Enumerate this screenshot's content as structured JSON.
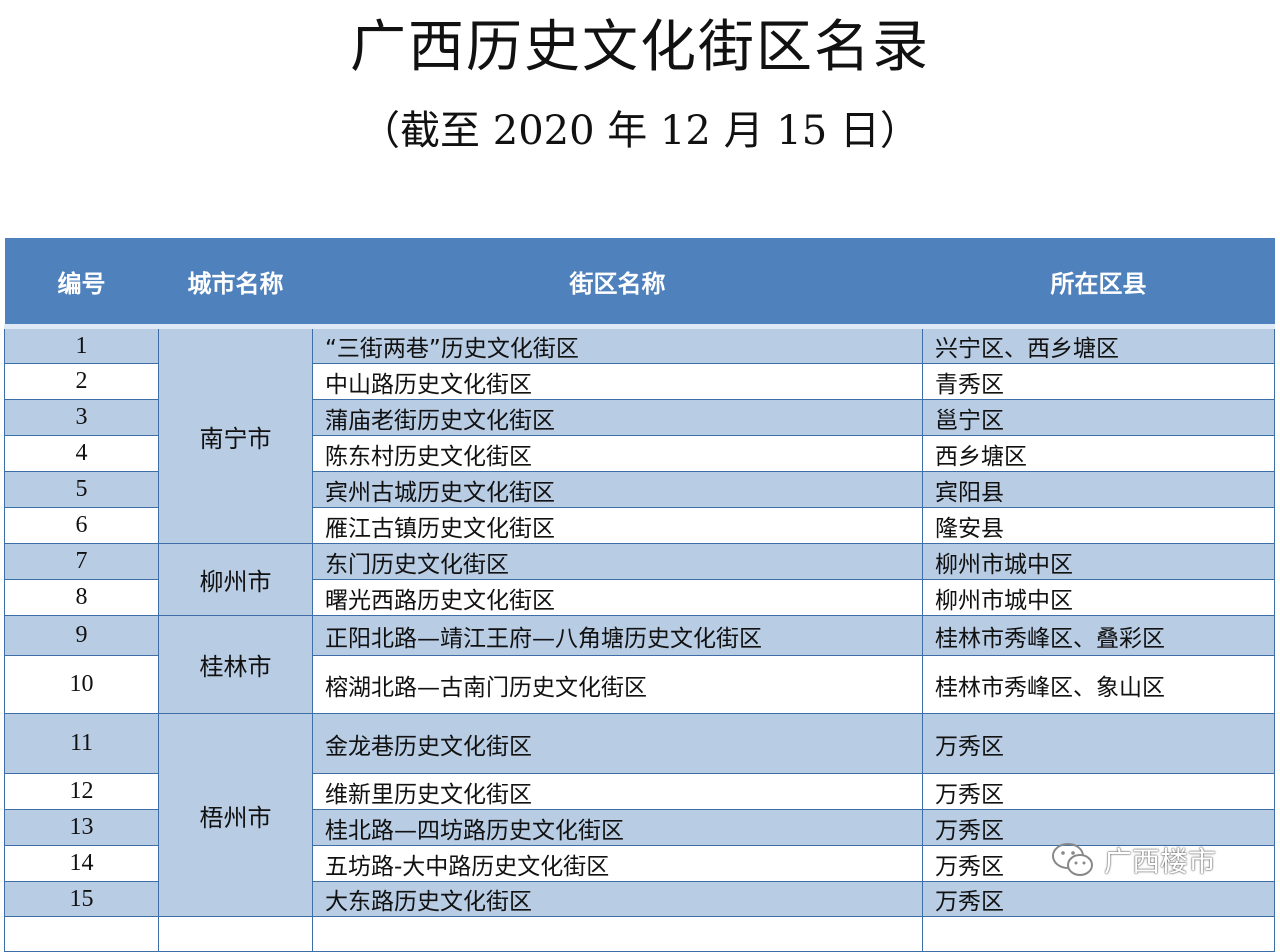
{
  "title": "广西历史文化街区名录",
  "subtitle": "（截至 2020 年 12 月 15 日）",
  "table": {
    "headers": [
      "编号",
      "城市名称",
      "街区名称",
      "所在区县"
    ],
    "rows": [
      {
        "no": "1",
        "name": "“三街两巷”历史文化街区",
        "district": "兴宁区、西乡塘区"
      },
      {
        "no": "2",
        "name": "中山路历史文化街区",
        "district": "青秀区"
      },
      {
        "no": "3",
        "name": "蒲庙老街历史文化街区",
        "district": "邕宁区"
      },
      {
        "no": "4",
        "name": "陈东村历史文化街区",
        "district": "西乡塘区"
      },
      {
        "no": "5",
        "name": "宾州古城历史文化街区",
        "district": "宾阳县"
      },
      {
        "no": "6",
        "name": "雁江古镇历史文化街区",
        "district": "隆安县"
      },
      {
        "no": "7",
        "name": "东门历史文化街区",
        "district": "柳州市城中区"
      },
      {
        "no": "8",
        "name": "曙光西路历史文化街区",
        "district": "柳州市城中区"
      },
      {
        "no": "9",
        "name": "正阳北路—靖江王府—八角塘历史文化街区",
        "district": "桂林市秀峰区、叠彩区"
      },
      {
        "no": "10",
        "name": "榕湖北路—古南门历史文化街区",
        "district": "桂林市秀峰区、象山区"
      },
      {
        "no": "11",
        "name": "金龙巷历史文化街区",
        "district": "万秀区"
      },
      {
        "no": "12",
        "name": "维新里历史文化街区",
        "district": "万秀区"
      },
      {
        "no": "13",
        "name": "桂北路—四坊路历史文化街区",
        "district": "万秀区"
      },
      {
        "no": "14",
        "name": "五坊路-大中路历史文化街区",
        "district": "万秀区"
      },
      {
        "no": "15",
        "name": "大东路历史文化街区",
        "district": "万秀区"
      }
    ],
    "cities": [
      "南宁市",
      "柳州市",
      "桂林市",
      "梧州市"
    ]
  },
  "watermark": {
    "text": "广西楼市",
    "icon": "wechat-icon"
  },
  "colors": {
    "header": "#4f81bd",
    "band": "#b8cce4",
    "border": "#3d6ea8"
  }
}
